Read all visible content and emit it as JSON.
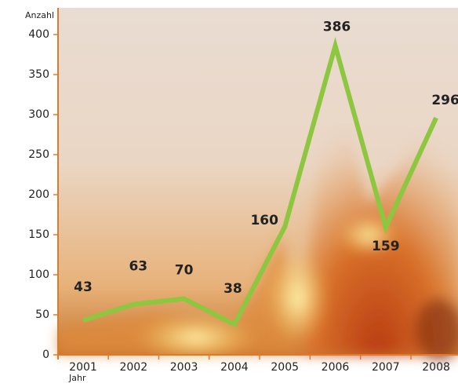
{
  "chart_data": {
    "type": "line",
    "y_label": "Anzahl",
    "x_label": "Jahr",
    "categories": [
      "2001",
      "2002",
      "2003",
      "2004",
      "2005",
      "2006",
      "2007",
      "2008"
    ],
    "values": [
      43,
      63,
      70,
      38,
      160,
      386,
      159,
      296
    ],
    "color": "#8dc63f",
    "ylim": [
      0,
      400
    ],
    "yticks": [
      0,
      50,
      100,
      150,
      200,
      250,
      300,
      350,
      400
    ]
  }
}
